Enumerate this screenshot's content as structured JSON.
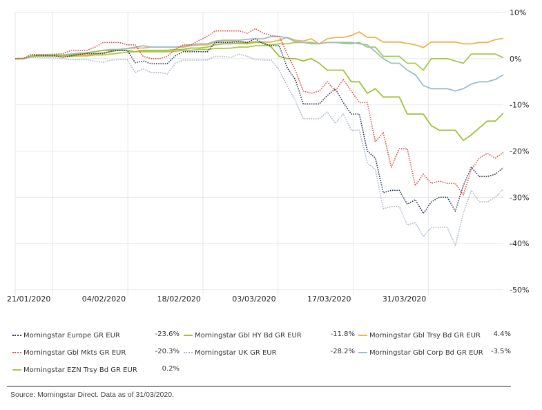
{
  "chart_data": {
    "type": "line",
    "title": "",
    "xlabel": "",
    "ylabel": "",
    "ylim": [
      -50,
      10
    ],
    "y_ticks": [
      "10%",
      "0%",
      "-10%",
      "-20%",
      "-30%",
      "-40%",
      "-50%"
    ],
    "y_tick_values": [
      10,
      0,
      -10,
      -20,
      -30,
      -40,
      -50
    ],
    "x_ticks": [
      "21/01/2020",
      "04/02/2020",
      "18/02/2020",
      "03/03/2020",
      "17/03/2020",
      "31/03/2020"
    ],
    "x_tick_index": [
      5,
      15,
      25,
      35,
      45,
      55
    ],
    "grid": true,
    "legend_position": "bottom",
    "series": [
      {
        "name": "Morningstar Europe GR EUR",
        "final": "-23.6%",
        "color": "#2b3a5c",
        "style": "dotted",
        "values": [
          0,
          0,
          0.9,
          0.6,
          0.6,
          0.6,
          0.3,
          0.6,
          0.9,
          1.1,
          1.1,
          1.1,
          1.6,
          1.8,
          1.8,
          -0.9,
          -0.5,
          -1.1,
          -1.1,
          -1.1,
          0.6,
          1.5,
          1.5,
          1.5,
          1.5,
          3.5,
          3.5,
          3.5,
          3.7,
          3.5,
          4.3,
          3.2,
          2.8,
          2.8,
          -2,
          -4.5,
          -9.8,
          -9.8,
          -9.8,
          -8,
          -6.5,
          -9.5,
          -12,
          -12,
          -20,
          -21.5,
          -29,
          -28.5,
          -28.5,
          -31.5,
          -30.5,
          -33.5,
          -31,
          -30,
          -30,
          -33,
          -27.5,
          -23.5,
          -25.5,
          -25.5,
          -25,
          -23.6
        ]
      },
      {
        "name": "Morningstar Gbl HY Bd GR EUR",
        "final": "-11.8%",
        "color": "#9dc23a",
        "style": "solid",
        "values": [
          0,
          0,
          0.5,
          0.8,
          0.8,
          0.8,
          0.7,
          0.8,
          1,
          1.3,
          1.5,
          1.8,
          1.8,
          1.8,
          1.8,
          1.5,
          1.8,
          1.8,
          1.8,
          1.8,
          2,
          2,
          2.3,
          2.3,
          2.5,
          3,
          3.2,
          3.2,
          3.3,
          3.2,
          3.5,
          3.5,
          2.5,
          0.5,
          0,
          0,
          -0.5,
          0,
          -1,
          -2.5,
          -2.5,
          -2.5,
          -5,
          -5,
          -7.5,
          -6.5,
          -8.3,
          -8.3,
          -8.3,
          -12,
          -12,
          -12,
          -14.5,
          -15.5,
          -15.5,
          -15.5,
          -17.7,
          -16.5,
          -15,
          -13.5,
          -13.5,
          -11.8
        ]
      },
      {
        "name": "Morningstar Gbl Trsy Bd GR EUR",
        "final": "4.4%",
        "color": "#f0b24a",
        "style": "solid",
        "values": [
          0,
          0,
          0.6,
          0.8,
          0.8,
          0.8,
          0.5,
          0.7,
          0.7,
          0.8,
          1,
          1.3,
          1.5,
          2,
          2.2,
          2.3,
          2.3,
          2.5,
          2.5,
          2.5,
          2.5,
          2.5,
          2.8,
          3,
          3,
          3.5,
          3.8,
          3.8,
          3.5,
          3.5,
          3.7,
          3.6,
          3.6,
          4,
          4.6,
          4,
          3.8,
          4.3,
          3.2,
          4.3,
          4.6,
          4.6,
          5,
          5.8,
          4.6,
          4.6,
          3.6,
          3.6,
          3.6,
          3.3,
          3,
          2.4,
          3.6,
          3.6,
          3.6,
          3.6,
          3.2,
          3.2,
          3.5,
          3.5,
          4.1,
          4.4
        ]
      },
      {
        "name": "Morningstar Gbl Mkts GR EUR",
        "final": "-20.3%",
        "color": "#e2514a",
        "style": "dotted",
        "values": [
          0,
          0,
          0.9,
          0.9,
          0.9,
          1,
          1.1,
          1.8,
          1.8,
          1.8,
          2.5,
          3.5,
          3.5,
          3.5,
          3,
          3,
          0.5,
          0,
          0,
          0.5,
          2,
          3,
          3,
          4,
          4.8,
          6,
          6,
          6,
          6,
          5.5,
          6.5,
          5.5,
          5,
          4.8,
          1,
          -2.5,
          -7,
          -7.5,
          -7,
          -5,
          -7,
          -4.5,
          -7,
          -9.5,
          -9.5,
          -18,
          -16,
          -23.5,
          -19.5,
          -19.5,
          -27.5,
          -25,
          -27,
          -26.5,
          -27,
          -27,
          -29.5,
          -24,
          -21.5,
          -20.5,
          -21.5,
          -20.3
        ]
      },
      {
        "name": "Morningstar UK GR EUR",
        "final": "-28.2%",
        "color": "#a9b3cc",
        "style": "dotted",
        "values": [
          0,
          0,
          0.3,
          0.2,
          0.2,
          0.2,
          0,
          -0.2,
          -0.2,
          -0.2,
          -0.6,
          -0.8,
          -0.3,
          -0.2,
          -0.2,
          -3,
          -2.2,
          -3,
          -3,
          -3.3,
          -1,
          -0.3,
          -0.3,
          -0.3,
          -0.3,
          0.5,
          0.5,
          0.3,
          1,
          0.5,
          -0.2,
          -0.3,
          -0.3,
          -2.5,
          -6,
          -9,
          -13,
          -13,
          -13,
          -11.5,
          -14,
          -12,
          -15.5,
          -15.5,
          -22.5,
          -24,
          -32.5,
          -32,
          -32,
          -36,
          -35.5,
          -38.5,
          -36.5,
          -36.5,
          -36.5,
          -40.5,
          -33.5,
          -28.5,
          -31,
          -31,
          -30,
          -28.2
        ]
      },
      {
        "name": "Morningstar Gbl Corp Bd GR EUR",
        "final": "-3.5%",
        "color": "#9bbccc",
        "style": "solid",
        "values": [
          0,
          0,
          0.6,
          0.8,
          0.8,
          0.8,
          0.8,
          1,
          1.2,
          1.2,
          1.5,
          1.8,
          2,
          2,
          2.2,
          2.5,
          2.8,
          2.5,
          2.5,
          2.5,
          2.5,
          2.7,
          3,
          3.2,
          3.2,
          3.8,
          4,
          4,
          4,
          4.2,
          4.3,
          4.3,
          4.8,
          4.8,
          4.5,
          3.7,
          3.5,
          3.2,
          3.2,
          3.5,
          3.5,
          3.5,
          3.5,
          3.2,
          3,
          1.5,
          0,
          -1,
          -1,
          -2.5,
          -3.5,
          -5.8,
          -6.5,
          -6.5,
          -6.5,
          -7,
          -6.5,
          -5.5,
          -5,
          -5,
          -4.5,
          -3.5
        ]
      },
      {
        "name": "Morningstar EZN Trsy Bd GR EUR",
        "final": "0.2%",
        "color": "#a5c94c",
        "style": "solid",
        "values": [
          0,
          0,
          0.4,
          0.6,
          0.6,
          0.6,
          0.5,
          0.5,
          0.6,
          0.6,
          0.8,
          0.8,
          1,
          1.2,
          1.4,
          1.5,
          1.5,
          1.5,
          1.5,
          1.5,
          1.6,
          1.8,
          1.8,
          2,
          2,
          2.2,
          2.2,
          2.3,
          2.5,
          2.5,
          2.8,
          2.8,
          3,
          3.2,
          3.2,
          3.5,
          3.5,
          3.5,
          3.2,
          3.5,
          3.5,
          3.3,
          3.2,
          3.5,
          2.5,
          2.5,
          0.5,
          0.5,
          0.5,
          -1,
          -1,
          -2.5,
          0,
          0,
          0,
          -0.5,
          -1,
          1,
          1,
          1,
          1,
          0.2
        ]
      }
    ]
  },
  "source": "Source: Morningstar Direct. Data as of 31/03/2020."
}
